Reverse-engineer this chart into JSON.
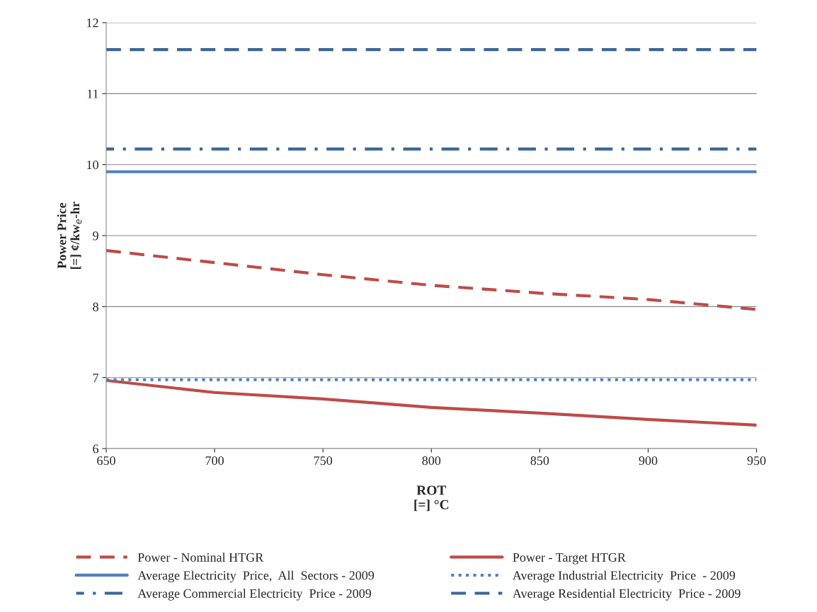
{
  "chart_data": {
    "type": "line",
    "xlabel": "ROT\n[=] °C",
    "ylabel": "Power Price\n[=] ¢/kw$_{e}$-hr",
    "xlim": [
      650,
      950
    ],
    "xticks": [
      650,
      700,
      750,
      800,
      850,
      900,
      950
    ],
    "ylim": [
      6,
      12
    ],
    "yticks": [
      6,
      7,
      8,
      9,
      10,
      11,
      12
    ],
    "grid": "y",
    "legend": "bottom",
    "marker": "none",
    "series": [
      {
        "name": "Power - Nominal HTGR",
        "color": "#be4b48",
        "line_style": "dashed",
        "x": [
          650,
          700,
          750,
          800,
          850,
          900,
          950
        ],
        "values": [
          8.79,
          8.62,
          8.45,
          8.3,
          8.19,
          8.1,
          7.96
        ]
      },
      {
        "name": "Power - Target HTGR",
        "color": "#be4b48",
        "line_style": "solid",
        "x": [
          650,
          700,
          750,
          800,
          850,
          900,
          950
        ],
        "values": [
          6.96,
          6.79,
          6.7,
          6.58,
          6.5,
          6.41,
          6.33
        ]
      },
      {
        "name": "Average Electricity  Price,  All  Sectors - 2009",
        "color": "#4f81bd",
        "line_style": "solid",
        "x": [
          650,
          950
        ],
        "values": [
          9.9,
          9.9
        ]
      },
      {
        "name": "Average Industrial Electricity  Price  - 2009",
        "color": "#4f81bd",
        "line_style": "dotted",
        "x": [
          650,
          950
        ],
        "values": [
          6.97,
          6.97
        ]
      },
      {
        "name": "Average Commercial Electricity  Price - 2009",
        "color": "#3b6696",
        "line_style": "dashdot",
        "x": [
          650,
          950
        ],
        "values": [
          10.22,
          10.22
        ]
      },
      {
        "name": "Average Residential Electricity  Price - 2009",
        "color": "#3b6696",
        "line_style": "dashed",
        "x": [
          650,
          950
        ],
        "values": [
          11.62,
          11.62
        ]
      }
    ]
  }
}
